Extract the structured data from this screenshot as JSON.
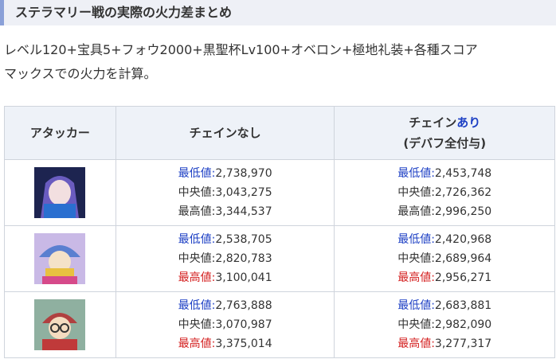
{
  "heading": "ステラマリー戦の実際の火力差まとめ",
  "intro": [
    "レベル120+宝具5+フォウ2000+黒聖杯Lv100+オベロン+極地礼装+各種スコア",
    "マックスでの火力を計算。"
  ],
  "table": {
    "header": {
      "attacker": "アタッカー",
      "no_chain": "チェインなし",
      "chain": "チェイン",
      "chain_on": "あり",
      "chain_note": "(デバフ全付与)"
    },
    "rows": [
      {
        "no_chain": [
          {
            "label": "最低値:",
            "value": "2,738,970",
            "color": "#1c3fc4"
          },
          {
            "label": "中央値:",
            "value": "3,043,275",
            "color": "#333333"
          },
          {
            "label": "最高値:",
            "value": "3,344,537",
            "color": "#333333"
          }
        ],
        "chain": [
          {
            "label": "最低値:",
            "value": "2,453,748",
            "color": "#1c3fc4"
          },
          {
            "label": "中央値:",
            "value": "2,726,362",
            "color": "#333333"
          },
          {
            "label": "最高値:",
            "value": "2,996,250",
            "color": "#333333"
          }
        ]
      },
      {
        "no_chain": [
          {
            "label": "最低値:",
            "value": "2,538,705",
            "color": "#1c3fc4"
          },
          {
            "label": "中央値:",
            "value": "2,820,783",
            "color": "#333333"
          },
          {
            "label": "最高値:",
            "value": "3,100,041",
            "color": "#d42020"
          }
        ],
        "chain": [
          {
            "label": "最低値:",
            "value": "2,420,968",
            "color": "#1c3fc4"
          },
          {
            "label": "中央値:",
            "value": "2,689,964",
            "color": "#333333"
          },
          {
            "label": "最高値:",
            "value": "2,956,271",
            "color": "#d42020"
          }
        ]
      },
      {
        "no_chain": [
          {
            "label": "最低値:",
            "value": "2,763,888",
            "color": "#1c3fc4"
          },
          {
            "label": "中央値:",
            "value": "3,070,987",
            "color": "#333333"
          },
          {
            "label": "最高値:",
            "value": "3,375,014",
            "color": "#d42020"
          }
        ],
        "chain": [
          {
            "label": "最低値:",
            "value": "2,683,881",
            "color": "#1c3fc4"
          },
          {
            "label": "中央値:",
            "value": "2,982,090",
            "color": "#333333"
          },
          {
            "label": "最高値:",
            "value": "3,277,317",
            "color": "#d42020"
          }
        ]
      }
    ]
  }
}
